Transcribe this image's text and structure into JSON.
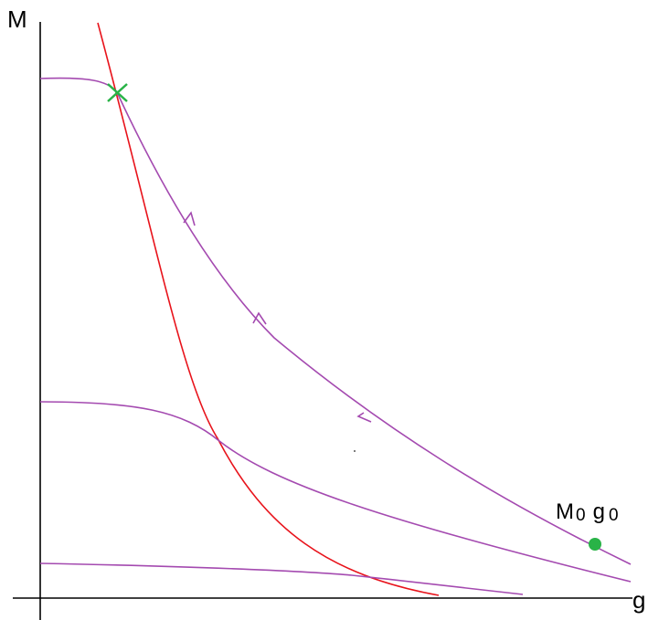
{
  "axes": {
    "x_label": "g",
    "y_label": "M"
  },
  "point": {
    "label_main": "M",
    "label_sub": "0",
    "label_g": "g",
    "label_g_sub": "0"
  },
  "colors": {
    "axis": "#000000",
    "nullcline": "#e8131b",
    "trajectory": "#a44ab0",
    "marker": "#29b347"
  }
}
